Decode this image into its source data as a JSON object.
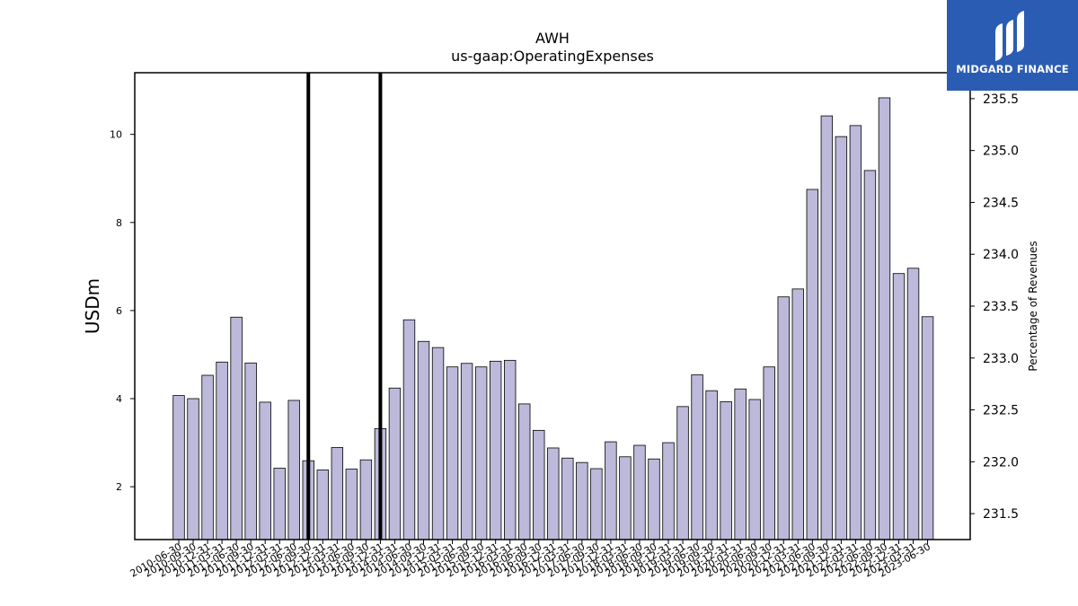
{
  "logo": {
    "text": "MIDGARD FINANCE",
    "background": "#2a5cb3"
  },
  "chart_data": {
    "type": "bar",
    "title": "AWH",
    "subtitle": "us-gaap:OperatingExpenses",
    "ylabel": "USDm",
    "ylabel_right": "Percentage of Revenues",
    "ylim": [
      0.8,
      11.4
    ],
    "yticks": [
      2,
      4,
      6,
      8,
      10
    ],
    "ylim_right": [
      231.25,
      235.75
    ],
    "yticks_right": [
      231.5,
      232.0,
      232.5,
      233.0,
      233.5,
      234.0,
      234.5,
      235.0,
      235.5
    ],
    "bar_color": "#bcb9da",
    "vlines_at": [
      "2012-09-30",
      "2013-12-31"
    ],
    "grid": false,
    "categories": [
      "2010-06-30",
      "2010-09-30",
      "2010-12-31",
      "2011-03-31",
      "2011-06-30",
      "2011-09-30",
      "2011-12-31",
      "2012-03-31",
      "2012-06-30",
      "2012-09-30",
      "2012-12-31",
      "2013-03-31",
      "2013-06-30",
      "2013-09-30",
      "2013-12-31",
      "2014-03-31",
      "2014-06-30",
      "2014-09-30",
      "2014-12-31",
      "2015-03-31",
      "2015-06-30",
      "2015-09-30",
      "2015-12-31",
      "2016-03-31",
      "2016-06-30",
      "2016-09-30",
      "2016-12-31",
      "2017-03-31",
      "2017-06-30",
      "2017-09-30",
      "2017-12-31",
      "2018-03-31",
      "2018-06-30",
      "2018-09-30",
      "2018-12-31",
      "2019-03-31",
      "2019-06-30",
      "2019-09-30",
      "2019-12-31",
      "2020-03-31",
      "2020-06-30",
      "2020-09-30",
      "2020-12-31",
      "2021-03-31",
      "2021-06-30",
      "2021-09-30",
      "2021-12-31",
      "2022-03-31",
      "2022-06-30",
      "2022-09-30",
      "2022-12-31",
      "2023-03-31",
      "2023-06-30"
    ],
    "values": [
      4.07,
      4.0,
      4.53,
      4.83,
      5.85,
      4.81,
      3.92,
      2.42,
      3.96,
      2.59,
      2.38,
      2.89,
      2.4,
      2.61,
      3.32,
      4.24,
      5.79,
      5.3,
      5.16,
      4.72,
      4.8,
      4.72,
      4.85,
      4.87,
      3.88,
      3.28,
      2.88,
      2.65,
      2.55,
      2.41,
      3.02,
      2.68,
      2.94,
      2.63,
      3.0,
      3.82,
      4.54,
      4.18,
      3.93,
      4.22,
      3.98,
      4.72,
      6.31,
      6.49,
      8.75,
      10.42,
      9.95,
      10.2,
      9.18,
      10.83,
      6.84,
      6.96,
      5.86
    ]
  }
}
